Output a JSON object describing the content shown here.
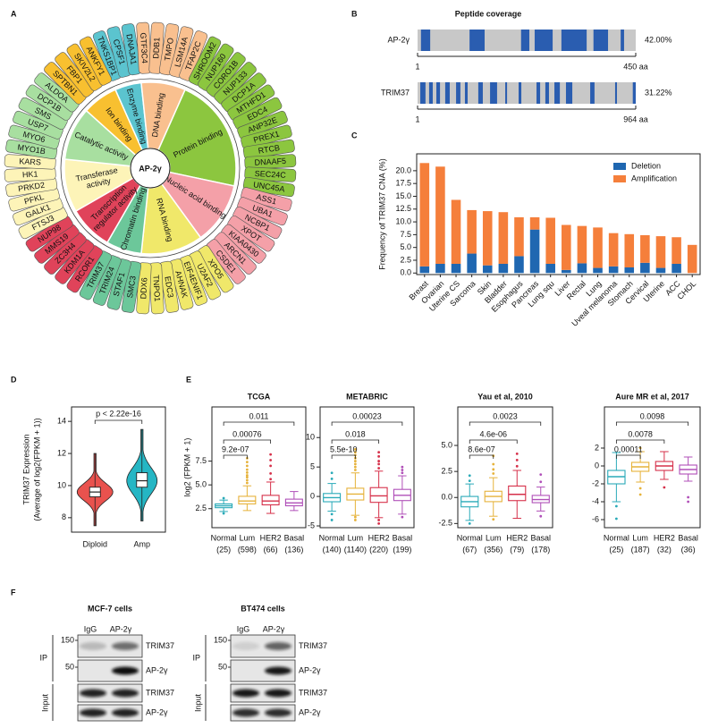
{
  "panel_labels": [
    "A",
    "B",
    "C",
    "D",
    "E",
    "F"
  ],
  "panel_a": {
    "center": "AP-2γ",
    "categories": [
      {
        "name": [
          "Enzyme binding"
        ],
        "color": "#5bc4cf",
        "genes": [
          "TNKS1BP1",
          "CPSF1",
          "DNAJA1"
        ]
      },
      {
        "name": [
          "DNA binding"
        ],
        "color": "#f9c08f",
        "genes": [
          "GTF3C4",
          "DDB1",
          "TMPO",
          "LSM14A",
          "TFAP2C"
        ]
      },
      {
        "name": [
          "Protein binding"
        ],
        "color": "#8cc63f",
        "genes": [
          "SHROOM2",
          "NUP160",
          "CORO1B",
          "NUP133",
          "DCP1A",
          "MTHFD1",
          "EDC4",
          "ANP32E",
          "PREX1",
          "RTCB",
          "DNAAF5",
          "SEC24C",
          "UNC45A"
        ]
      },
      {
        "name": [
          "Nucleic acid binding"
        ],
        "color": "#f4a0a8",
        "genes": [
          "ASS1",
          "UBA1",
          "NCBP1",
          "XPOT",
          "KIAA0430",
          "ARCN1",
          "CSDE1"
        ]
      },
      {
        "name": [
          "RNA binding"
        ],
        "color": "#f0e86a",
        "genes": [
          "XPO5",
          "U2AF2",
          "EIF4ENIF1",
          "AHNAK",
          "EDC3",
          "TNPO1",
          "DDX6"
        ]
      },
      {
        "name": [
          "Chromatin binding"
        ],
        "color": "#6cc79a",
        "genes": [
          "SMC3",
          "STAF1",
          "TRIM24",
          "TRIM37"
        ]
      },
      {
        "name": [
          "Transcription",
          "regulator activity"
        ],
        "color": "#e0435a",
        "genes": [
          "RCOR1",
          "KDM1A",
          "ZC3H4",
          "MMS19",
          "NUP98"
        ]
      },
      {
        "name": [
          "Transferase",
          "activity"
        ],
        "color": "#fdf4b8",
        "genes": [
          "FTSJ3",
          "GALK1",
          "PFKL",
          "PRKD2",
          "HK1",
          "KARS"
        ]
      },
      {
        "name": [
          "Catalytic activity"
        ],
        "color": "#a8dfa0",
        "genes": [
          "MYO1B",
          "MYO6",
          "USP7",
          "SMS",
          "DCP1B",
          "ALDOA"
        ]
      },
      {
        "name": [
          "Ion binding"
        ],
        "color": "#f8c030",
        "genes": [
          "SPTBN1",
          "FBP1",
          "SKIV2L2",
          "ANKFY1"
        ]
      }
    ]
  },
  "chart_data": [
    {
      "type": "coverage",
      "title": "Peptide coverage",
      "color": "#2a5db0",
      "background": "#c8c8c8",
      "series": [
        {
          "name": "AP-2γ",
          "coverage": "42.00%",
          "xlim": [
            1,
            450
          ],
          "xticks": [
            1,
            {
              "value": 450,
              "label": "450 aa"
            }
          ],
          "segments": [
            [
              8,
              27
            ],
            [
              108,
              139
            ],
            [
              214,
              231
            ],
            [
              242,
              279
            ],
            [
              297,
              349
            ],
            [
              363,
              393
            ],
            [
              419,
              426
            ]
          ]
        },
        {
          "name": "TRIM37",
          "coverage": "31.22%",
          "xlim": [
            1,
            964
          ],
          "xticks": [
            1,
            {
              "value": 964,
              "label": "964 aa"
            }
          ],
          "segments": [
            [
              13,
              36
            ],
            [
              52,
              68
            ],
            [
              84,
              100
            ],
            [
              123,
              143
            ],
            [
              171,
              190
            ],
            [
              210,
              222
            ],
            [
              269,
              289
            ],
            [
              321,
              352
            ],
            [
              388,
              396
            ],
            [
              447,
              459
            ],
            [
              526,
              542
            ],
            [
              565,
              581
            ],
            [
              605,
              629
            ],
            [
              656,
              684
            ],
            [
              763,
              782
            ],
            [
              873,
              881
            ],
            [
              951,
              964
            ]
          ]
        }
      ]
    },
    {
      "type": "bar",
      "stacked": true,
      "ylabel": "Frequency of TRIM37 CNA (%)",
      "categories": [
        "Breast",
        "Ovarian",
        "Uterine CS",
        "Sarcoma",
        "Skin",
        "Bladder",
        "Esophagus",
        "Pancreas",
        "Lung squ",
        "Liver",
        "Rectal",
        "Lung",
        "Uveal melanoma",
        "Stomach",
        "Cervical",
        "Uterine",
        "ACC",
        "CHOL"
      ],
      "series": [
        {
          "name": "Deletion",
          "color": "#1f67b1",
          "values": [
            1.3,
            1.8,
            1.8,
            3.8,
            1.5,
            1.8,
            3.3,
            8.5,
            1.8,
            0.6,
            1.9,
            1.0,
            1.3,
            1.1,
            2.0,
            1.0,
            1.8,
            0
          ]
        },
        {
          "name": "Amplification",
          "color": "#f57f3b",
          "values": [
            20.2,
            19.0,
            12.5,
            8.5,
            10.6,
            10.1,
            7.6,
            2.4,
            9.0,
            8.8,
            7.3,
            7.9,
            6.5,
            6.5,
            5.4,
            6.2,
            5.2,
            5.5
          ]
        }
      ],
      "ylim": [
        -0.3,
        23.3
      ],
      "yticks": [
        {
          "value": 0,
          "label": "0.0"
        },
        2.5,
        {
          "value": 5,
          "label": "5.0"
        },
        7.5,
        {
          "value": 10,
          "label": "10.0"
        },
        12.5,
        {
          "value": 15,
          "label": "15.0"
        },
        17.5,
        {
          "value": 20,
          "label": "20.0"
        }
      ],
      "legend": "upper right"
    },
    {
      "type": "violin",
      "ylabel": [
        "TRIM37 Expression",
        "(Average of log2(FPKM + 1))"
      ],
      "annotation": "p < 2.22e-16",
      "categories": [
        "Diploid",
        "Amp"
      ],
      "colors": [
        "#e9524e",
        "#25b6c4"
      ],
      "boxes": [
        {
          "min": 7.5,
          "q1": 9.3,
          "median": 9.6,
          "q3": 9.9,
          "max": 12.0
        },
        {
          "min": 7.8,
          "q1": 9.9,
          "median": 10.3,
          "q3": 10.8,
          "max": 13.5
        }
      ],
      "ylim": [
        7.1,
        14.9
      ],
      "yticks": [
        8,
        10,
        12,
        14
      ]
    },
    {
      "type": "box",
      "title": "TCGA",
      "ylabel": "log2 (FPKM + 1)",
      "categories": [
        "Normal",
        "Lum",
        "HER2",
        "Basal"
      ],
      "group_sizes": [
        "(25)",
        "(598)",
        "(66)",
        "(136)"
      ],
      "colors": [
        "#29aab8",
        "#e6b23a",
        "#d6304a",
        "#b04fb8"
      ],
      "p_values": [
        "9.2e-07",
        "0.00076",
        "0.011"
      ],
      "boxes": [
        {
          "min": 2.2,
          "q1": 2.6,
          "median": 2.8,
          "q3": 3.0,
          "max": 3.4,
          "outliers": [
            3.6,
            2.0
          ]
        },
        {
          "min": 2.3,
          "q1": 3.0,
          "median": 3.3,
          "q3": 3.8,
          "max": 4.9,
          "outliers": [
            5.2,
            5.5,
            5.8,
            6.0,
            6.3,
            6.6,
            7.0,
            7.4,
            7.8
          ]
        },
        {
          "min": 2.0,
          "q1": 2.9,
          "median": 3.3,
          "q3": 3.9,
          "max": 5.3,
          "outliers": [
            5.6,
            6.2,
            7.0,
            7.6,
            8.2
          ]
        },
        {
          "min": 2.3,
          "q1": 2.8,
          "median": 3.1,
          "q3": 3.5,
          "max": 4.3,
          "outliers": []
        }
      ],
      "ylim": [
        0.5,
        13.2
      ],
      "yticks": [
        2.5,
        {
          "value": 5,
          "label": "5.0"
        },
        7.5
      ]
    },
    {
      "type": "box",
      "title": "METABRIC",
      "categories": [
        "Normal",
        "Lum",
        "HER2",
        "Basal"
      ],
      "group_sizes": [
        "(140)",
        "(1140)",
        "(220)",
        "(199)"
      ],
      "colors": [
        "#29aab8",
        "#e6b23a",
        "#d6304a",
        "#b04fb8"
      ],
      "p_values": [
        "5.5e-10",
        "0.018",
        "0.00023"
      ],
      "boxes": [
        {
          "min": -2.5,
          "q1": -0.9,
          "median": -0.2,
          "q3": 0.5,
          "max": 2.2,
          "outliers": [
            3,
            4,
            -3,
            -4
          ]
        },
        {
          "min": -3.2,
          "q1": -0.6,
          "median": 0.4,
          "q3": 1.4,
          "max": 4,
          "outliers": [
            4.5,
            5,
            5.5,
            6,
            6.5,
            7,
            7.5,
            8,
            -3.5,
            -4
          ]
        },
        {
          "min": -3.6,
          "q1": -1.0,
          "median": 0.1,
          "q3": 1.5,
          "max": 4.3,
          "outliers": [
            4.8,
            5.5,
            6,
            6.8,
            7.5,
            -4,
            -4.6
          ]
        },
        {
          "min": -3,
          "q1": -0.7,
          "median": 0.2,
          "q3": 1.2,
          "max": 3.5,
          "outliers": [
            4,
            4.5,
            5,
            -3.5
          ]
        }
      ],
      "ylim": [
        -5.3,
        15.2
      ],
      "yticks": [
        -5,
        0,
        5,
        10
      ]
    },
    {
      "type": "box",
      "title": "Yau et al, 2010",
      "categories": [
        "Normal",
        "Lum",
        "HER2",
        "Basal"
      ],
      "group_sizes": [
        "(67)",
        "(356)",
        "(79)",
        "(178)"
      ],
      "colors": [
        "#29aab8",
        "#e6b23a",
        "#d6304a",
        "#b04fb8"
      ],
      "p_values": [
        "8.6e-07",
        "4.6e-06",
        "0.0023"
      ],
      "boxes": [
        {
          "min": -2.2,
          "q1": -0.9,
          "median": -0.4,
          "q3": 0.1,
          "max": 1.3,
          "outliers": [
            2.1,
            1.6,
            -2.5
          ]
        },
        {
          "min": -1.8,
          "q1": -0.4,
          "median": 0.1,
          "q3": 0.6,
          "max": 1.9,
          "outliers": [
            2.3,
            2.7,
            3.2,
            4.0,
            -2.1
          ]
        },
        {
          "min": -2,
          "q1": -0.3,
          "median": 0.3,
          "q3": 1.1,
          "max": 2.6,
          "outliers": [
            3.0,
            3.6,
            4.2
          ]
        },
        {
          "min": -1.3,
          "q1": -0.5,
          "median": -0.2,
          "q3": 0.2,
          "max": 1.0,
          "outliers": [
            1.5,
            2.2,
            -1.8
          ]
        }
      ],
      "ylim": [
        -2.9,
        8.7
      ],
      "yticks": [
        {
          "value": -2.5,
          "label": "-2.5"
        },
        {
          "value": 0,
          "label": "0.0"
        },
        2.5,
        {
          "value": 5,
          "label": "5.0"
        }
      ]
    },
    {
      "type": "box",
      "title": "Aure MR et al, 2017",
      "categories": [
        "Normal",
        "Lum",
        "HER2",
        "Basal"
      ],
      "group_sizes": [
        "(25)",
        "(187)",
        "(32)",
        "(36)"
      ],
      "colors": [
        "#29aab8",
        "#e6b23a",
        "#d6304a",
        "#b04fb8"
      ],
      "p_values": [
        "0.00011",
        "0.0078",
        "0.0098"
      ],
      "boxes": [
        {
          "min": -4,
          "q1": -2.0,
          "median": -1.2,
          "q3": -0.5,
          "max": 1.5,
          "outliers": [
            -5.9,
            -4.5
          ]
        },
        {
          "min": -1.8,
          "q1": -0.6,
          "median": -0.1,
          "q3": 0.4,
          "max": 1.6,
          "outliers": [
            2.0,
            -2.5,
            -3.2
          ]
        },
        {
          "min": -1.5,
          "q1": -0.5,
          "median": 0.0,
          "q3": 0.5,
          "max": 1.6,
          "outliers": [
            -2.4
          ]
        },
        {
          "min": -1.7,
          "q1": -0.9,
          "median": -0.4,
          "q3": 0.1,
          "max": 1.0,
          "outliers": [
            -3.5,
            -4
          ]
        }
      ],
      "ylim": [
        -6.9,
        6.6
      ],
      "yticks": [
        -6,
        -4,
        -2,
        0,
        2
      ]
    }
  ],
  "panel_f": {
    "blots": [
      {
        "title": "MCF-7 cells",
        "lanes": [
          "IgG",
          "AP-2γ"
        ],
        "sections": [
          "IP",
          "Input"
        ],
        "markers": [
          150,
          50
        ],
        "rows": [
          "TRIM37",
          "AP-2γ",
          "TRIM37",
          "AP-2γ"
        ]
      },
      {
        "title": "BT474 cells",
        "lanes": [
          "IgG",
          "AP-2γ"
        ],
        "sections": [
          "IP",
          "Input"
        ],
        "markers": [
          150,
          50
        ],
        "rows": [
          "TRIM37",
          "AP-2γ",
          "TRIM37",
          "AP-2γ"
        ]
      }
    ]
  }
}
